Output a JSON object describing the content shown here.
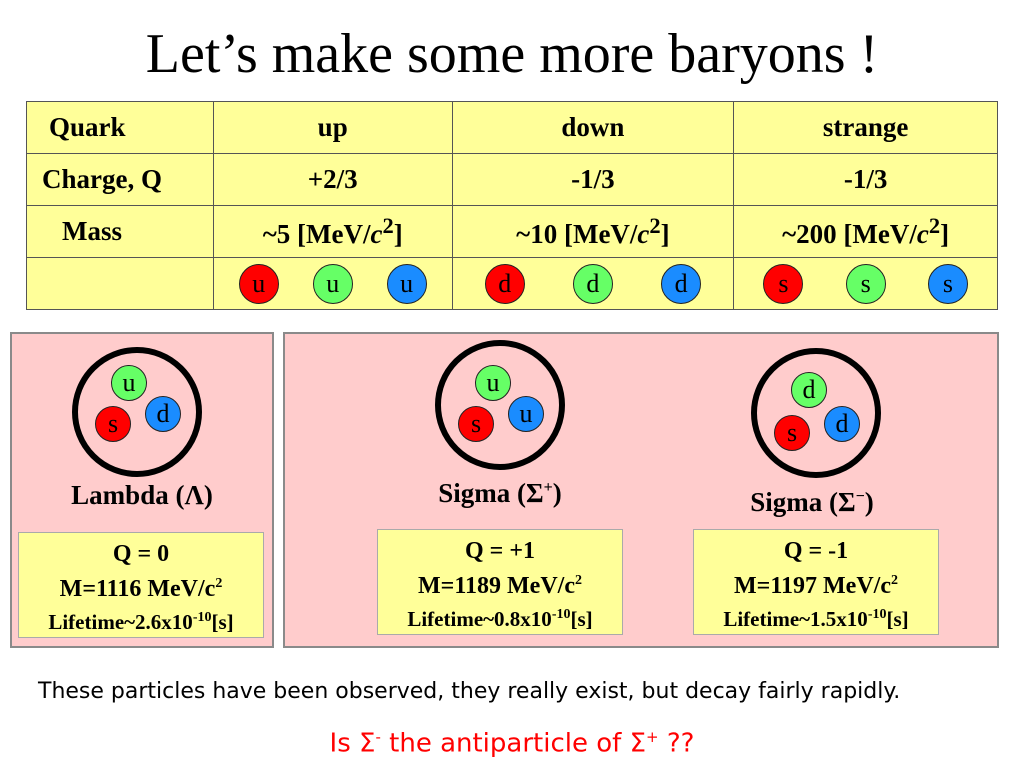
{
  "title": "Let’s make some more baryons !",
  "table": {
    "header": [
      "Quark",
      "up",
      "down",
      "strange"
    ],
    "charge_row": [
      "Charge, Q",
      "+2/3",
      "-1/3",
      "-1/3"
    ],
    "mass_row": {
      "label": "Mass",
      "up": {
        "pre": "~5 [MeV/",
        "c": "c",
        "sup": "2",
        "post": "]"
      },
      "down": {
        "pre": "~10 [MeV/",
        "c": "c",
        "sup": "2",
        "post": "]"
      },
      "strange": {
        "pre": "~200 [MeV/",
        "c": "c",
        "sup": "2",
        "post": "]"
      }
    },
    "color_balls": {
      "up": [
        "u",
        "u",
        "u"
      ],
      "down": [
        "d",
        "d",
        "d"
      ],
      "strange": [
        "s",
        "s",
        "s"
      ]
    }
  },
  "colors": {
    "red": "#ff0000",
    "green": "#66ff66",
    "blue": "#1a8cff",
    "panel": "#ffcccc",
    "table": "#ffff99"
  },
  "particles": [
    {
      "name_pre": "Lambda (",
      "symbol": "Λ",
      "sup": "",
      "name_post": ")",
      "quarks": {
        "green": "u",
        "red": "s",
        "blue": "d"
      },
      "q": "Q = 0",
      "m_pre": "M=1116 MeV/c",
      "m_sup": "2",
      "lt_pre": "Lifetime~2.6x10",
      "lt_sup": "-10",
      "lt_post": "[s]"
    },
    {
      "name_pre": "Sigma (",
      "symbol": "Σ",
      "sup": "+",
      "name_post": ")",
      "quarks": {
        "green": "u",
        "red": "s",
        "blue": "u"
      },
      "q": "Q = +1",
      "m_pre": "M=1189 MeV/c",
      "m_sup": "2",
      "lt_pre": "Lifetime~0.8x10",
      "lt_sup": "-10",
      "lt_post": "[s]"
    },
    {
      "name_pre": "Sigma (",
      "symbol": "Σ",
      "sup": "−",
      "name_post": ")",
      "quarks": {
        "green": "d",
        "red": "s",
        "blue": "d"
      },
      "q": "Q = -1",
      "m_pre": "M=1197 MeV/c",
      "m_sup": "2",
      "lt_pre": "Lifetime~1.5x10",
      "lt_sup": "-10",
      "lt_post": "[s]"
    }
  ],
  "footer": "These particles have been observed, they really exist, but decay fairly rapidly.",
  "question": {
    "pre": "Is ",
    "sym1": "Σ",
    "sup1": "-",
    "mid": " the antiparticle of ",
    "sym2": "Σ",
    "sup2": "+",
    "post": " ??"
  }
}
